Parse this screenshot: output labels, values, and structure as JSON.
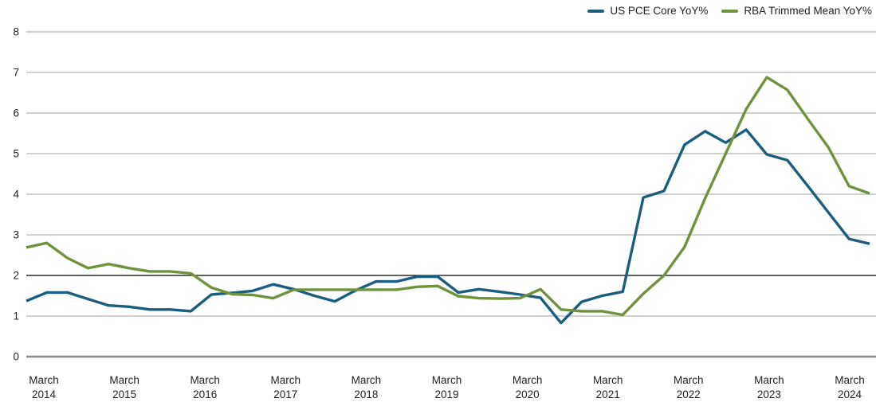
{
  "chart_data": {
    "type": "line",
    "title": "",
    "xlabel": "",
    "ylabel": "",
    "ylim": [
      0,
      8
    ],
    "yticks": [
      0,
      1,
      2,
      3,
      4,
      5,
      6,
      7,
      8
    ],
    "emphasized_y_gridline": 2,
    "grid": "horizontal-only",
    "legend_position": "top-right",
    "x": [
      "Mar 2014",
      "Jun 2014",
      "Sep 2014",
      "Dec 2014",
      "Mar 2015",
      "Jun 2015",
      "Sep 2015",
      "Dec 2015",
      "Mar 2016",
      "Jun 2016",
      "Sep 2016",
      "Dec 2016",
      "Mar 2017",
      "Jun 2017",
      "Sep 2017",
      "Dec 2017",
      "Mar 2018",
      "Jun 2018",
      "Sep 2018",
      "Dec 2018",
      "Mar 2019",
      "Jun 2019",
      "Sep 2019",
      "Dec 2019",
      "Mar 2020",
      "Jun 2020",
      "Sep 2020",
      "Dec 2020",
      "Mar 2021",
      "Jun 2021",
      "Sep 2021",
      "Dec 2021",
      "Mar 2022",
      "Jun 2022",
      "Sep 2022",
      "Dec 2022",
      "Mar 2023",
      "Jun 2023",
      "Sep 2023",
      "Dec 2023",
      "Mar 2024",
      "Jun 2024"
    ],
    "x_axis_ticks": [
      {
        "month": "March",
        "year": "2014"
      },
      {
        "month": "March",
        "year": "2015"
      },
      {
        "month": "March",
        "year": "2016"
      },
      {
        "month": "March",
        "year": "2017"
      },
      {
        "month": "March",
        "year": "2018"
      },
      {
        "month": "March",
        "year": "2019"
      },
      {
        "month": "March",
        "year": "2020"
      },
      {
        "month": "March",
        "year": "2021"
      },
      {
        "month": "March",
        "year": "2022"
      },
      {
        "month": "March",
        "year": "2023"
      },
      {
        "month": "March",
        "year": "2024"
      }
    ],
    "series": [
      {
        "name": "US PCE Core YoY%",
        "color": "#1b5d7e",
        "values": [
          1.37,
          1.58,
          1.58,
          1.42,
          1.26,
          1.23,
          1.16,
          1.16,
          1.12,
          1.53,
          1.57,
          1.62,
          1.78,
          1.66,
          1.5,
          1.36,
          1.63,
          1.85,
          1.85,
          1.97,
          1.97,
          1.58,
          1.66,
          1.6,
          1.53,
          1.45,
          0.83,
          1.35,
          1.5,
          1.6,
          3.92,
          4.08,
          5.22,
          5.55,
          5.27,
          5.59,
          4.98,
          4.84,
          4.2,
          3.55,
          2.9,
          2.78
        ]
      },
      {
        "name": "RBA Trimmed Mean YoY%",
        "color": "#6f923e",
        "values": [
          2.69,
          2.8,
          2.43,
          2.18,
          2.28,
          2.18,
          2.1,
          2.1,
          2.05,
          1.7,
          1.54,
          1.52,
          1.44,
          1.65,
          1.65,
          1.65,
          1.65,
          1.65,
          1.65,
          1.72,
          1.74,
          1.49,
          1.44,
          1.43,
          1.44,
          1.66,
          1.16,
          1.12,
          1.12,
          1.03,
          1.55,
          2.0,
          2.7,
          3.9,
          5.0,
          6.1,
          6.88,
          6.57,
          5.85,
          5.15,
          4.2,
          4.02
        ]
      }
    ],
    "colors": {
      "gridline": "#b3b3b3",
      "emphasized_gridline": "#000000",
      "baseline": "#8c8c8c",
      "text": "#231f20"
    }
  }
}
